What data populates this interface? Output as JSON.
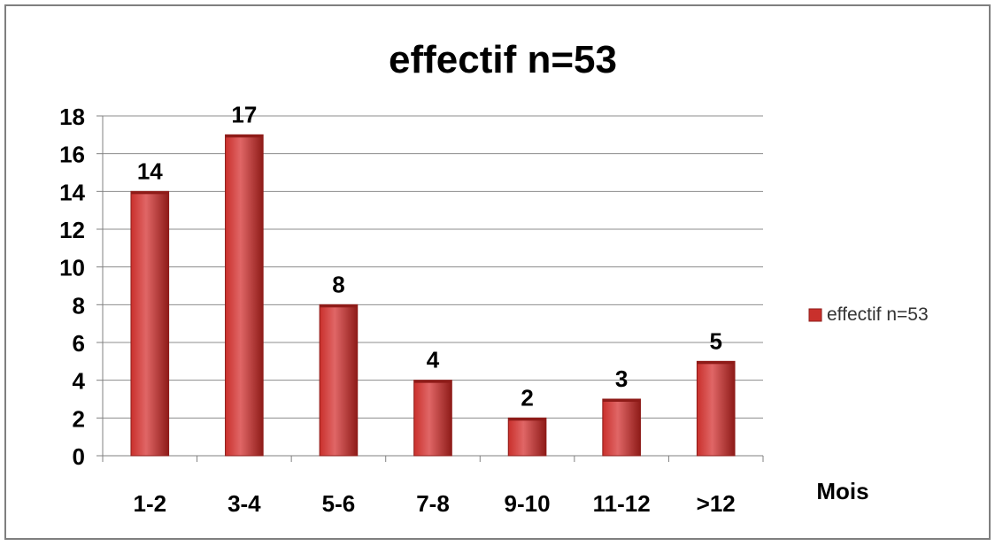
{
  "chart_data": {
    "type": "bar",
    "title": "effectif n=53",
    "xlabel": "Mois",
    "ylabel": "",
    "categories": [
      "1-2",
      "3-4",
      "5-6",
      "7-8",
      "9-10",
      "11-12",
      ">12"
    ],
    "series": [
      {
        "name": "effectif n=53",
        "values": [
          14,
          17,
          8,
          4,
          2,
          3,
          5
        ]
      }
    ],
    "ylim": [
      0,
      18
    ],
    "yticks": [
      0,
      2,
      4,
      6,
      8,
      10,
      12,
      14,
      16,
      18
    ],
    "grid": true,
    "legend_position": "right",
    "data_labels": true
  },
  "colors": {
    "bar_light": "#e06666",
    "bar_main": "#c9302c",
    "bar_dark": "#8e1b18",
    "gridline": "#8c8c8c",
    "axis": "#808080",
    "text": "#000000",
    "border": "#7f7f7f",
    "legend_text": "#333333"
  }
}
